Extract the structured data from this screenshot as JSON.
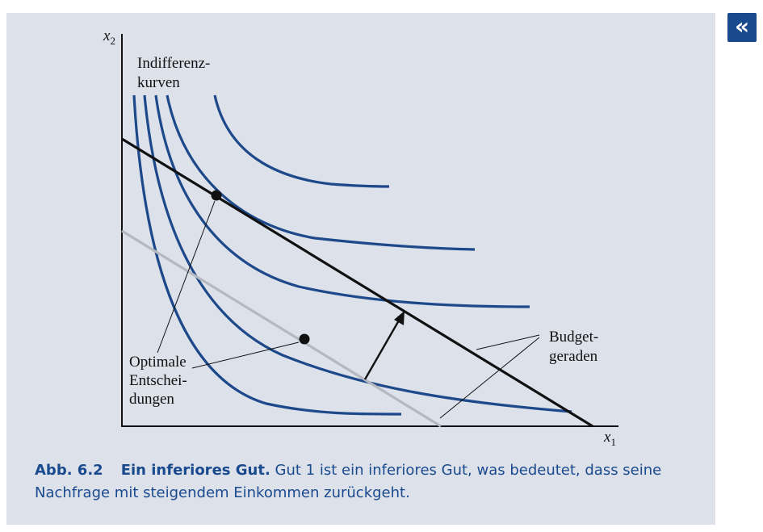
{
  "figure": {
    "axis_y_label": "x",
    "axis_y_sub": "2",
    "axis_x_label": "x",
    "axis_x_sub": "1",
    "label_indiff_line1": "Indifferenz-",
    "label_indiff_line2": "kurven",
    "label_opt_line1": "Optimale",
    "label_opt_line2": "Entschei-",
    "label_opt_line3": "dungen",
    "label_budget_line1": "Budget-",
    "label_budget_line2": "geraden",
    "colors": {
      "curve": "#1d4889",
      "budget_new": "#111111",
      "budget_old": "#b4b8c0",
      "panel": "#dde1ea",
      "caption": "#1a4a8e"
    }
  },
  "caption": {
    "number": "Abb. 6.2",
    "title": "Ein inferiores Gut.",
    "text": "Gut 1 ist ein inferiores Gut, was bedeutet, dass seine Nachfrage mit steigendem Einkommen zurückgeht."
  },
  "nav": {
    "back_icon": "«"
  }
}
